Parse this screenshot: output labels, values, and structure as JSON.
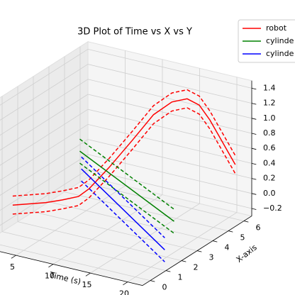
{
  "chart_data": {
    "type": "line3d",
    "title": "3D Plot of Time vs X vs Y",
    "xlabel": "Time (s)",
    "ylabel": "X-axis",
    "xlim": [
      0,
      22
    ],
    "ylim": [
      -0.5,
      6.5
    ],
    "zlim": [
      -0.3,
      1.5
    ],
    "xticks": [
      5,
      10,
      15,
      20
    ],
    "yticks": [
      0,
      1,
      2,
      3,
      4,
      5,
      6
    ],
    "zticks": [
      {
        "value": -0.2,
        "label": "−0.2"
      },
      {
        "value": 0,
        "label": "0.0"
      },
      0.2,
      0.4,
      0.6,
      0.8,
      {
        "value": 1,
        "label": "1.0"
      },
      1.2,
      1.4
    ],
    "grid": true,
    "legend": "upper right",
    "series": [
      {
        "name": "robot",
        "color": "#ff0000",
        "x": [
          1,
          3,
          5,
          7,
          9,
          10,
          11,
          12,
          13,
          14,
          15,
          16,
          17,
          18,
          19,
          20
        ],
        "y": [
          1.2,
          1.3,
          1.4,
          1.5,
          1.6,
          1.8,
          2.6,
          3.6,
          4.5,
          5.2,
          5.7,
          6.0,
          6.2,
          6.3,
          6.4,
          6.4
        ],
        "z": [
          0.05,
          0.1,
          0.15,
          0.22,
          0.3,
          0.4,
          0.6,
          0.85,
          1.1,
          1.2,
          1.2,
          1.1,
          0.9,
          0.7,
          0.5,
          0.35
        ],
        "lower": [
          -0.07,
          -0.02,
          0.03,
          0.1,
          0.18,
          0.28,
          0.48,
          0.73,
          0.98,
          1.08,
          1.08,
          0.98,
          0.78,
          0.58,
          0.38,
          0.23
        ],
        "upper": [
          0.17,
          0.22,
          0.27,
          0.34,
          0.42,
          0.52,
          0.72,
          0.97,
          1.22,
          1.32,
          1.32,
          1.22,
          1.02,
          0.82,
          0.62,
          0.47
        ]
      },
      {
        "name": "cylinde",
        "color": "#008000",
        "x": [
          1,
          21
        ],
        "y": [
          5.5,
          2.0
        ],
        "z": [
          0.2,
          0.2
        ],
        "lower": [
          0.04,
          0.04
        ],
        "upper": [
          0.36,
          0.36
        ]
      },
      {
        "name": "cylinde",
        "color": "#0000ff",
        "x": [
          1,
          21
        ],
        "y": [
          5.6,
          1.4
        ],
        "z": [
          -0.05,
          -0.1
        ],
        "lower": [
          -0.21,
          -0.26
        ],
        "upper": [
          0.11,
          0.06
        ]
      }
    ]
  }
}
